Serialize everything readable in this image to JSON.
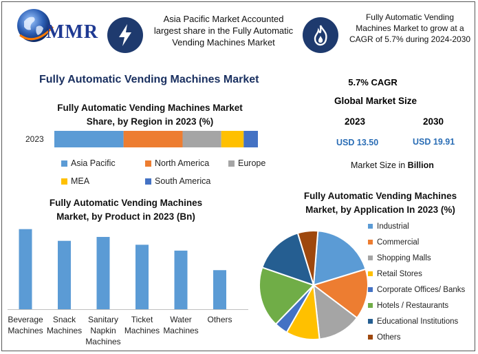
{
  "header": {
    "logo_text": "MMR",
    "box1_text": [
      "Asia Pacific Market Accounted",
      "largest share in the Fully Automatic",
      "Vending Machines Market"
    ],
    "box2_text": [
      "Fully Automatic Vending",
      "Machines Market to grow at a",
      "CAGR of 5.7% during 2024-2030"
    ]
  },
  "main_title": "Fully Automatic Vending Machines Market",
  "stats": {
    "cagr": "5.7% CAGR",
    "global_size_label": "Global Market Size",
    "year1": "2023",
    "year2": "2030",
    "value1": "USD 13.50",
    "value2": "USD 19.91",
    "unit_prefix": "Market Size in ",
    "unit_bold": "Billion"
  },
  "chart_data": [
    {
      "type": "bar",
      "title": "Fully Automatic Vending Machines Market Share, by Region in 2023 (%)",
      "title_lines": [
        "Fully Automatic Vending Machines Market",
        "Share, by Region in 2023 (%)"
      ],
      "stacked": true,
      "orientation": "horizontal",
      "categories": [
        "2023"
      ],
      "series": [
        {
          "name": "Asia Pacific",
          "values": [
            34
          ],
          "color": "#5b9bd5"
        },
        {
          "name": "North America",
          "values": [
            29
          ],
          "color": "#ed7d31"
        },
        {
          "name": "Europe",
          "values": [
            19
          ],
          "color": "#a5a5a5"
        },
        {
          "name": "MEA",
          "values": [
            11
          ],
          "color": "#ffc000"
        },
        {
          "name": "South America",
          "values": [
            7
          ],
          "color": "#4472c4"
        }
      ]
    },
    {
      "type": "bar",
      "title": "Fully Automatic Vending Machines Market, by Product in 2023 (Bn)",
      "title_lines": [
        "Fully Automatic Vending Machines",
        "Market, by Product in 2023 (Bn)"
      ],
      "categories": [
        [
          "Beverage",
          "Machines"
        ],
        [
          "Snack",
          "Machines"
        ],
        [
          "Sanitary",
          "Napkin",
          "Machines"
        ],
        [
          "Ticket",
          "Machines"
        ],
        [
          "Water",
          "Machines"
        ],
        [
          "Others"
        ]
      ],
      "values": [
        4.1,
        3.5,
        3.7,
        3.3,
        3.0,
        2.0
      ],
      "ylim": [
        0,
        4.3
      ],
      "color": "#5b9bd5"
    },
    {
      "type": "pie",
      "title": "Fully Automatic Vending Machines Market, by Application In 2023 (%)",
      "title_lines": [
        "Fully Automatic Vending Machines",
        "Market, by Application In 2023 (%)"
      ],
      "labels": [
        "Industrial",
        "Commercial",
        "Shopping Malls",
        "Retail Stores",
        "Corporate Offices/ Banks",
        "Hotels / Restaurants",
        "Educational Institutions",
        "Others"
      ],
      "values": [
        19,
        15,
        13,
        10,
        4,
        18,
        15,
        6
      ],
      "colors": [
        "#5b9bd5",
        "#ed7d31",
        "#a5a5a5",
        "#ffc000",
        "#4472c4",
        "#70ad47",
        "#255e91",
        "#9e480e"
      ]
    }
  ]
}
